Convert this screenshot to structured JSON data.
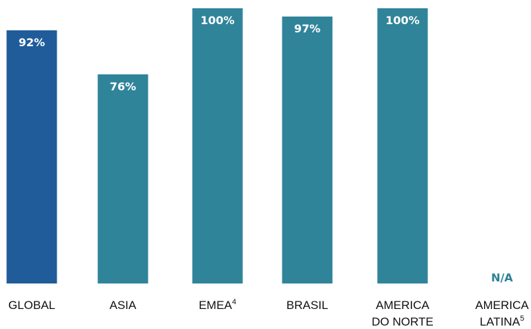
{
  "colors": {
    "global_bar": "#1f5c99",
    "region_bar": "#30849a",
    "na_label": "#2e8196",
    "label_text": "#111111",
    "value_text": "#ffffff"
  },
  "chart_data": {
    "type": "bar",
    "title": "",
    "xlabel": "",
    "ylabel": "",
    "ylim": [
      0,
      100
    ],
    "grid": false,
    "categories": [
      "GLOBAL",
      "ASIA",
      "EMEA",
      "BRASIL",
      "AMERICA DO NORTE",
      "AMERICA LATINA"
    ],
    "category_lines": [
      [
        {
          "t": "GLOBAL"
        }
      ],
      [
        {
          "t": "ASIA"
        }
      ],
      [
        {
          "t": "EMEA",
          "sup": "4"
        }
      ],
      [
        {
          "t": "BRASIL"
        }
      ],
      [
        {
          "t": "AMERICA"
        },
        {
          "t": "DO NORTE"
        }
      ],
      [
        {
          "t": "AMERICA"
        },
        {
          "t": "LATINA",
          "sup": "5"
        }
      ]
    ],
    "values": [
      92,
      76,
      100,
      97,
      100,
      null
    ],
    "value_labels": [
      "92%",
      "76%",
      "100%",
      "97%",
      "100%",
      "N/A"
    ]
  }
}
